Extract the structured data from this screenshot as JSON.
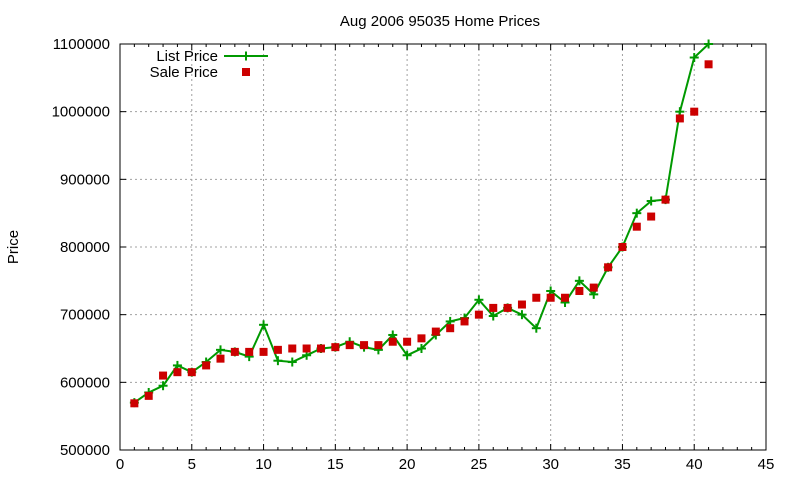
{
  "chart_data": {
    "type": "line",
    "title": "Aug 2006 95035 Home Prices",
    "xlabel": "",
    "ylabel": "Price",
    "xlim": [
      0,
      45
    ],
    "ylim": [
      500000,
      1100000
    ],
    "xticks": [
      0,
      5,
      10,
      15,
      20,
      25,
      30,
      35,
      40,
      45
    ],
    "yticks": [
      500000,
      600000,
      700000,
      800000,
      900000,
      1000000,
      1100000
    ],
    "grid": true,
    "legend_position": "top-left",
    "series": [
      {
        "name": "List Price",
        "style": "line-with-plus-markers",
        "color": "#009900",
        "x": [
          1,
          2,
          3,
          4,
          5,
          6,
          7,
          8,
          9,
          10,
          11,
          12,
          13,
          14,
          15,
          16,
          17,
          18,
          19,
          20,
          21,
          22,
          23,
          24,
          25,
          26,
          27,
          28,
          29,
          30,
          31,
          32,
          33,
          34,
          35,
          36,
          37,
          38,
          39,
          40,
          41
        ],
        "y": [
          570000,
          585000,
          595000,
          625000,
          615000,
          630000,
          648000,
          645000,
          638000,
          685000,
          632000,
          630000,
          640000,
          650000,
          652000,
          660000,
          652000,
          648000,
          670000,
          640000,
          650000,
          670000,
          690000,
          695000,
          722000,
          698000,
          710000,
          700000,
          680000,
          735000,
          718000,
          750000,
          730000,
          770000,
          800000,
          850000,
          868000,
          870000,
          1000000,
          1080000,
          1100000
        ]
      },
      {
        "name": "Sale Price",
        "style": "square-markers",
        "color": "#cc0000",
        "x": [
          1,
          2,
          3,
          4,
          5,
          6,
          7,
          8,
          9,
          10,
          11,
          12,
          13,
          14,
          15,
          16,
          17,
          18,
          19,
          20,
          21,
          22,
          23,
          24,
          25,
          26,
          27,
          28,
          29,
          30,
          31,
          32,
          33,
          34,
          35,
          36,
          37,
          38,
          39,
          40,
          41
        ],
        "y": [
          569000,
          580000,
          610000,
          615000,
          615000,
          625000,
          635000,
          645000,
          645000,
          645000,
          648000,
          650000,
          650000,
          650000,
          652000,
          655000,
          655000,
          655000,
          660000,
          660000,
          665000,
          675000,
          680000,
          690000,
          700000,
          710000,
          710000,
          715000,
          725000,
          725000,
          725000,
          735000,
          740000,
          770000,
          800000,
          830000,
          845000,
          870000,
          990000,
          1000000,
          1070000
        ]
      }
    ]
  }
}
